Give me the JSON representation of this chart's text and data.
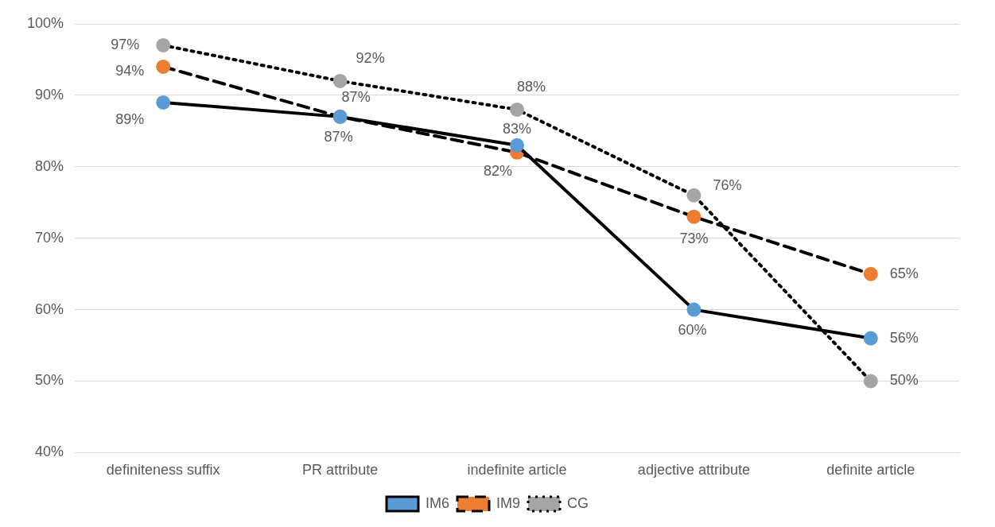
{
  "chart_data": {
    "type": "line",
    "categories": [
      "definiteness suffix",
      "PR attribute",
      "indefinite article",
      "adjective attribute",
      "definite article"
    ],
    "series": [
      {
        "name": "IM6",
        "color": "#5b9bd5",
        "line_style": "solid",
        "values": [
          89,
          87,
          83,
          60,
          56
        ],
        "value_labels": [
          "89%",
          "87%",
          "83%",
          "60%",
          "56%"
        ]
      },
      {
        "name": "IM9",
        "color": "#ed7d31",
        "line_style": "dashed",
        "values": [
          94,
          87,
          82,
          73,
          65
        ],
        "value_labels": [
          "94%",
          "87%",
          "82%",
          "73%",
          "65%"
        ]
      },
      {
        "name": "CG",
        "color": "#a5a5a5",
        "line_style": "dotted",
        "values": [
          97,
          92,
          88,
          76,
          50
        ],
        "value_labels": [
          "97%",
          "92%",
          "88%",
          "76%",
          "50%"
        ]
      }
    ],
    "ylim": [
      40,
      100
    ],
    "yticks": [
      {
        "value": 40,
        "label": "40%"
      },
      {
        "value": 50,
        "label": "50%"
      },
      {
        "value": 60,
        "label": "60%"
      },
      {
        "value": 70,
        "label": "70%"
      },
      {
        "value": 80,
        "label": "80%"
      },
      {
        "value": 90,
        "label": "90%"
      },
      {
        "value": 100,
        "label": "100%"
      }
    ],
    "grid": "y",
    "legend": "bottom",
    "marker": "circle"
  }
}
